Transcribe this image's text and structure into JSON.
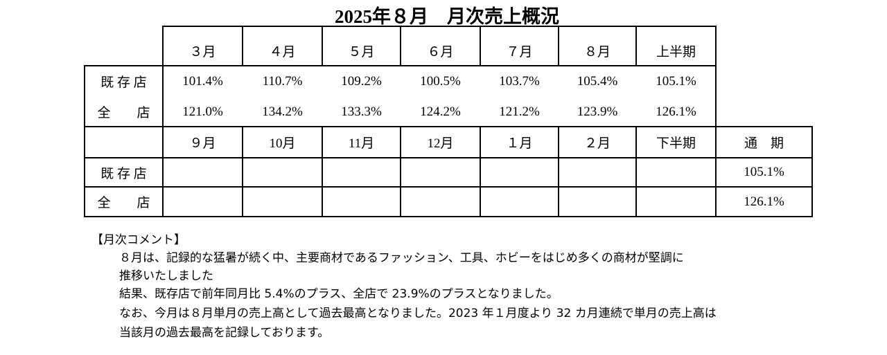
{
  "title": "2025年８月　月次売上概況",
  "first_half": {
    "headers": [
      "３月",
      "４月",
      "５月",
      "６月",
      "７月",
      "８月",
      "上半期"
    ],
    "rows": [
      {
        "label": "既 存 店",
        "values": [
          "101.4%",
          "110.7%",
          "109.2%",
          "100.5%",
          "103.7%",
          "105.4%",
          "105.1%"
        ]
      },
      {
        "label": "全　　店",
        "values": [
          "121.0%",
          "134.2%",
          "133.3%",
          "124.2%",
          "121.2%",
          "123.9%",
          "126.1%"
        ]
      }
    ]
  },
  "second_half": {
    "headers": [
      "９月",
      "10月",
      "11月",
      "12月",
      "１月",
      "２月",
      "下半期",
      "通　期"
    ],
    "rows": [
      {
        "label": "既 存 店",
        "annual": "105.1%"
      },
      {
        "label": "全　　店",
        "annual": "126.1%"
      }
    ]
  },
  "comment": {
    "heading": "【月次コメント】",
    "lines": [
      "８月は、記録的な猛暑が続く中、主要商材であるファッション、工具、ホビーをはじめ多くの商材が堅調に",
      "推移いたしました",
      "結果、既存店で前年同月比 5.4%のプラス、全店で 23.9%のプラスとなりました。",
      "なお、今月は８月単月の売上高として過去最高となりました。2023 年１月度より 32 カ月連続で単月の売上高は",
      "当該月の過去最高を記録しております。"
    ]
  }
}
